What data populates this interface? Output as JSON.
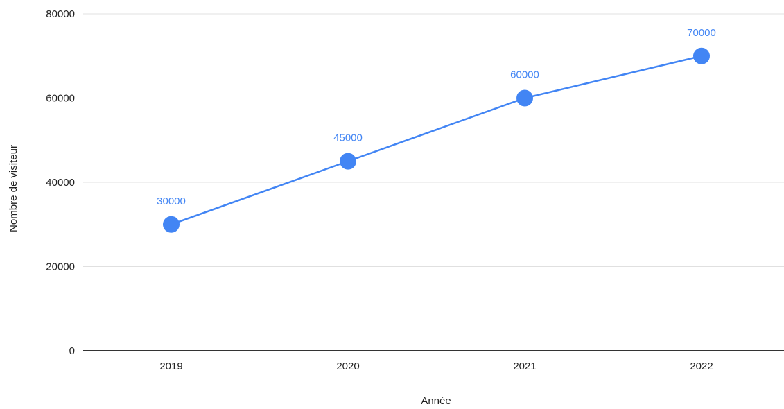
{
  "chart_data": {
    "type": "line",
    "title": "",
    "xlabel": "Année",
    "ylabel": "Nombre de visiteur",
    "categories": [
      "2019",
      "2020",
      "2021",
      "2022"
    ],
    "series": [
      {
        "values": [
          30000,
          45000,
          60000,
          70000
        ],
        "color": "#4285f4"
      }
    ],
    "data_labels": [
      "30000",
      "45000",
      "60000",
      "70000"
    ],
    "y_ticks": [
      0,
      20000,
      40000,
      60000,
      80000
    ],
    "ylim": [
      0,
      80000
    ],
    "grid": true,
    "legend": "none",
    "colors": {
      "grid": "#e0e0e0",
      "axis": "#333333",
      "label": "#4285f4"
    }
  }
}
